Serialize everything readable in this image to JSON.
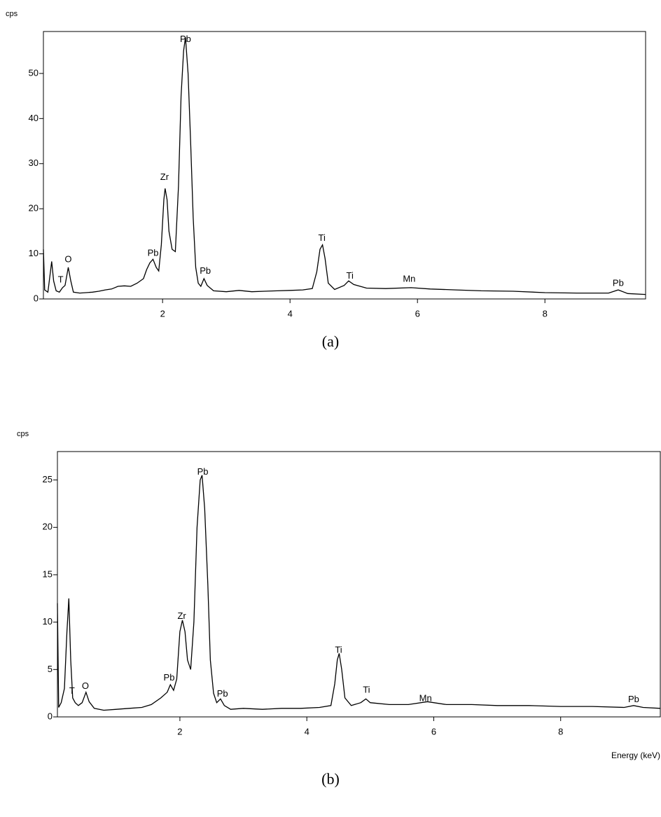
{
  "chart_data": [
    {
      "type": "line",
      "caption": "(a)",
      "ylabel": "cps",
      "xlim": [
        0.13,
        9.58
      ],
      "ylim": [
        0,
        59.3
      ],
      "xticks": [
        2,
        4,
        6,
        8
      ],
      "yticks": [
        0,
        10,
        20,
        30,
        40,
        50
      ],
      "color": "#000000",
      "x": [
        0.13,
        0.15,
        0.2,
        0.24,
        0.26,
        0.29,
        0.33,
        0.38,
        0.43,
        0.47,
        0.52,
        0.56,
        0.6,
        0.7,
        0.8,
        0.9,
        1.0,
        1.1,
        1.2,
        1.3,
        1.4,
        1.5,
        1.6,
        1.7,
        1.75,
        1.8,
        1.85,
        1.9,
        1.94,
        1.98,
        2.02,
        2.04,
        2.07,
        2.1,
        2.15,
        2.2,
        2.25,
        2.29,
        2.33,
        2.36,
        2.4,
        2.44,
        2.48,
        2.52,
        2.56,
        2.6,
        2.65,
        2.7,
        2.8,
        3.0,
        3.2,
        3.4,
        3.6,
        3.8,
        4.0,
        4.2,
        4.35,
        4.42,
        4.47,
        4.51,
        4.55,
        4.6,
        4.7,
        4.85,
        4.92,
        5.0,
        5.2,
        5.5,
        5.9,
        6.2,
        6.6,
        7.0,
        7.5,
        8.0,
        8.5,
        9.0,
        9.15,
        9.3,
        9.58
      ],
      "values": [
        11,
        2,
        1.5,
        6,
        8.3,
        4,
        1.8,
        1.5,
        2.5,
        3,
        7,
        4,
        1.5,
        1.3,
        1.4,
        1.5,
        1.7,
        2,
        2.2,
        2.8,
        2.9,
        2.8,
        3.5,
        4.5,
        6.5,
        8,
        8.8,
        7,
        6.2,
        12,
        22,
        24.5,
        22,
        15,
        11,
        10.5,
        25,
        45,
        55,
        58,
        50,
        35,
        18,
        7,
        3.5,
        2.8,
        4.5,
        3,
        1.8,
        1.6,
        1.9,
        1.6,
        1.7,
        1.8,
        1.9,
        2,
        2.3,
        6,
        11,
        12,
        9,
        3.5,
        2.1,
        3,
        4,
        3.2,
        2.4,
        2.3,
        2.5,
        2.2,
        2,
        1.8,
        1.7,
        1.4,
        1.3,
        1.3,
        2,
        1.2,
        1.0
      ],
      "annotations": [
        {
          "text": "Pb",
          "x": 2.36,
          "y": 57.5
        },
        {
          "text": "Zr",
          "x": 2.03,
          "y": 26.9
        },
        {
          "text": "Pb",
          "x": 1.85,
          "y": 10.1
        },
        {
          "text": "O",
          "x": 0.52,
          "y": 8.7
        },
        {
          "text": "T",
          "x": 0.4,
          "y": 4.2
        },
        {
          "text": "Pb",
          "x": 2.67,
          "y": 6.1
        },
        {
          "text": "Ti",
          "x": 4.5,
          "y": 13.4
        },
        {
          "text": "Ti",
          "x": 4.94,
          "y": 5.0
        },
        {
          "text": "Mn",
          "x": 5.87,
          "y": 4.3
        },
        {
          "text": "Pb",
          "x": 9.15,
          "y": 3.4
        }
      ]
    },
    {
      "type": "line",
      "caption": "(b)",
      "ylabel": "cps",
      "xlabel": "Energy (keV)",
      "xlim": [
        0.07,
        9.57
      ],
      "ylim": [
        0,
        28
      ],
      "xticks": [
        2,
        4,
        6,
        8
      ],
      "yticks": [
        0,
        5,
        10,
        15,
        20,
        25
      ],
      "color": "#000000",
      "x": [
        0.07,
        0.09,
        0.13,
        0.18,
        0.22,
        0.25,
        0.28,
        0.31,
        0.35,
        0.4,
        0.46,
        0.52,
        0.57,
        0.65,
        0.8,
        1.0,
        1.2,
        1.4,
        1.55,
        1.7,
        1.8,
        1.85,
        1.9,
        1.95,
        2.0,
        2.04,
        2.08,
        2.12,
        2.17,
        2.22,
        2.27,
        2.32,
        2.35,
        2.39,
        2.44,
        2.48,
        2.53,
        2.58,
        2.64,
        2.7,
        2.8,
        3.0,
        3.3,
        3.6,
        3.9,
        4.2,
        4.38,
        4.44,
        4.48,
        4.51,
        4.55,
        4.6,
        4.7,
        4.85,
        4.93,
        5.0,
        5.3,
        5.6,
        5.9,
        6.2,
        6.6,
        7.0,
        7.5,
        8.0,
        8.5,
        9.0,
        9.15,
        9.3,
        9.57
      ],
      "values": [
        12,
        1,
        1.5,
        3,
        9,
        12.5,
        6,
        2,
        1.5,
        1.2,
        1.5,
        2.6,
        1.6,
        0.9,
        0.7,
        0.8,
        0.9,
        1.0,
        1.3,
        2.0,
        2.6,
        3.4,
        2.8,
        4,
        9,
        10.2,
        9,
        6,
        5,
        10,
        20,
        25,
        25.5,
        22,
        14,
        6,
        2.5,
        1.5,
        1.9,
        1.2,
        0.8,
        0.9,
        0.8,
        0.9,
        0.9,
        1.0,
        1.2,
        3.5,
        6,
        6.7,
        5,
        2,
        1.2,
        1.5,
        1.9,
        1.5,
        1.3,
        1.3,
        1.6,
        1.3,
        1.3,
        1.2,
        1.2,
        1.1,
        1.1,
        1.0,
        1.2,
        1.0,
        0.9
      ],
      "annotations": [
        {
          "text": "Pb",
          "x": 2.36,
          "y": 25.8
        },
        {
          "text": "Zr",
          "x": 2.03,
          "y": 10.6
        },
        {
          "text": "Pb",
          "x": 1.83,
          "y": 4.1
        },
        {
          "text": "O",
          "x": 0.51,
          "y": 3.2
        },
        {
          "text": "T",
          "x": 0.3,
          "y": 2.7
        },
        {
          "text": "Pb",
          "x": 2.67,
          "y": 2.4
        },
        {
          "text": "Ti",
          "x": 4.5,
          "y": 7.0
        },
        {
          "text": "Ti",
          "x": 4.94,
          "y": 2.8
        },
        {
          "text": "Mn",
          "x": 5.87,
          "y": 1.9
        },
        {
          "text": "Pb",
          "x": 9.15,
          "y": 1.8
        }
      ]
    }
  ]
}
